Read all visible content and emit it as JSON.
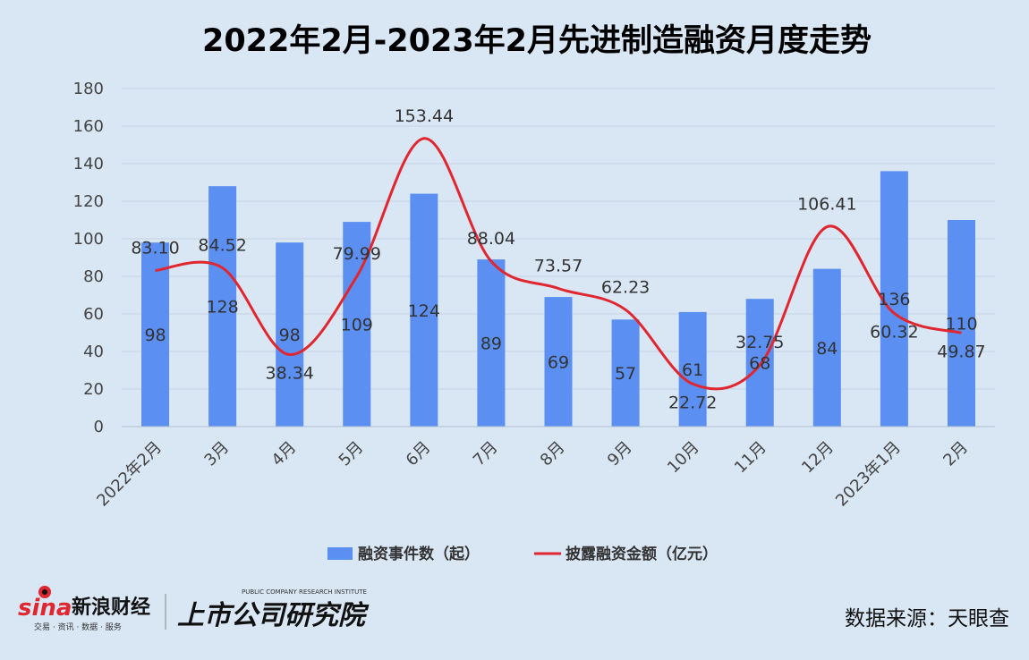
{
  "source_label": "数据来源：天眼查",
  "logos": {
    "sina_text": "sina",
    "sina_cn": "新浪财经",
    "sina_sub": "交易 · 资讯 · 数据 · 服务",
    "institute_cn": "上市公司研究院",
    "institute_en": "PUBLIC COMPANY RESEARCH INSTITUTE"
  },
  "colors": {
    "bar": "#5b8ff2",
    "line": "#e0262e",
    "background": "#d9e6f4",
    "grid": "#c5d3e3"
  },
  "chart_data": {
    "type": "bar",
    "title": "2022年2月-2023年2月先进制造融资月度走势",
    "categories": [
      "2022年2月",
      "3月",
      "4月",
      "5月",
      "6月",
      "7月",
      "8月",
      "9月",
      "10月",
      "11月",
      "12月",
      "2023年1月",
      "2月"
    ],
    "ylim": [
      0,
      180
    ],
    "yticks": [
      0,
      20,
      40,
      60,
      80,
      100,
      120,
      140,
      160,
      180
    ],
    "grid": true,
    "legend_position": "bottom",
    "series": [
      {
        "name": "融资事件数（起）",
        "type": "bar",
        "values": [
          98,
          128,
          98,
          109,
          124,
          89,
          69,
          57,
          61,
          68,
          84,
          136,
          110
        ],
        "labels": [
          "98",
          "128",
          "98",
          "109",
          "124",
          "89",
          "69",
          "57",
          "61",
          "68",
          "84",
          "136",
          "110"
        ]
      },
      {
        "name": "披露融资金额（亿元）",
        "type": "line",
        "smooth": true,
        "values": [
          83.1,
          84.52,
          38.34,
          79.99,
          153.44,
          88.04,
          73.57,
          62.23,
          22.72,
          32.75,
          106.41,
          60.32,
          49.87
        ],
        "labels": [
          "83.10",
          "84.52",
          "38.34",
          "79.99",
          "153.44",
          "88.04",
          "73.57",
          "62.23",
          "22.72",
          "32.75",
          "106.41",
          "60.32",
          "49.87"
        ]
      }
    ]
  }
}
